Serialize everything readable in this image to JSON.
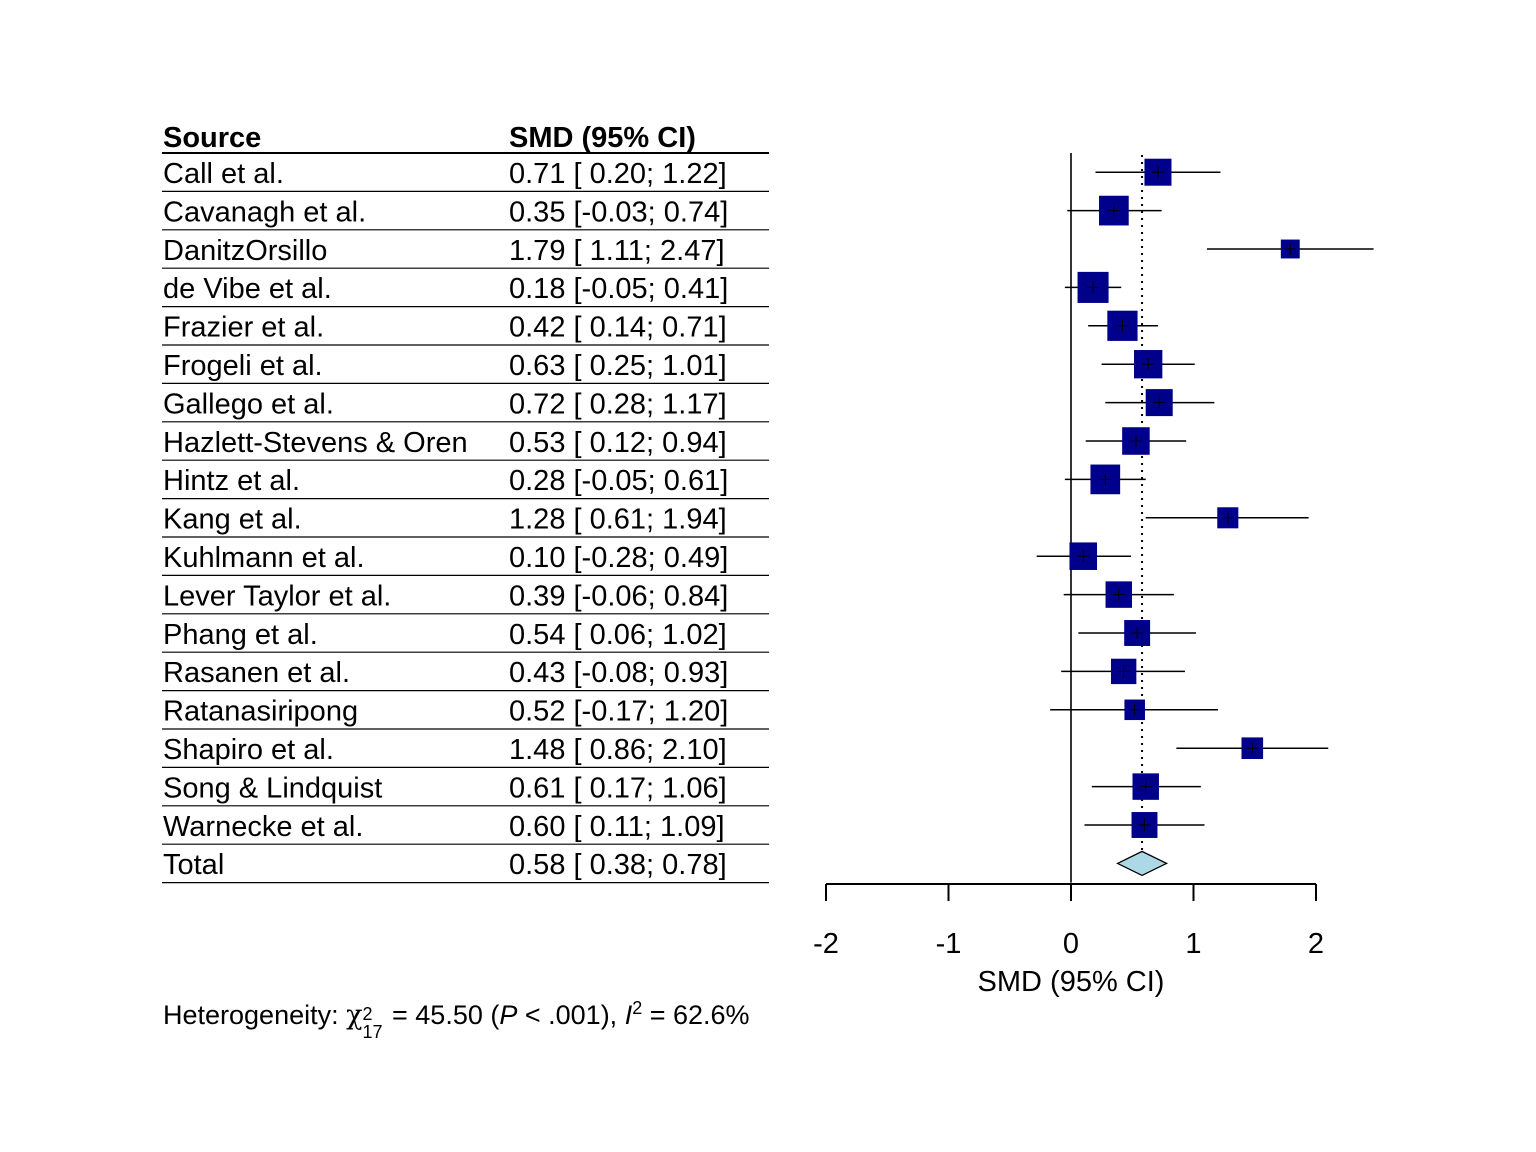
{
  "chart_data": {
    "type": "forest",
    "columns": {
      "source": "Source",
      "estimate": "SMD (95% CI)"
    },
    "xlabel": "SMD (95% CI)",
    "xlim": [
      -2,
      2
    ],
    "xticks": [
      "-2",
      "-1",
      "0",
      "1",
      "2"
    ],
    "xtick_values": [
      -2,
      -1,
      0,
      1,
      2
    ],
    "null_line": 0,
    "pooled_line": 0.58,
    "marker_color": "#00008B",
    "diamond_color": "#ADD8E6",
    "studies": [
      {
        "source": "Call et al.",
        "smd": 0.71,
        "lower": 0.2,
        "upper": 1.22,
        "ci_text": "0.71 [ 0.20; 1.22]",
        "weight": 1.0
      },
      {
        "source": "Cavanagh et al.",
        "smd": 0.35,
        "lower": -0.03,
        "upper": 0.74,
        "ci_text": "0.35 [-0.03; 0.74]",
        "weight": 1.1
      },
      {
        "source": "DanitzOrsillo",
        "smd": 1.79,
        "lower": 1.11,
        "upper": 2.47,
        "ci_text": "1.79 [ 1.11; 2.47]",
        "weight": 0.7
      },
      {
        "source": "de Vibe et al.",
        "smd": 0.18,
        "lower": -0.05,
        "upper": 0.41,
        "ci_text": "0.18 [-0.05; 0.41]",
        "weight": 1.15
      },
      {
        "source": "Frazier et al.",
        "smd": 0.42,
        "lower": 0.14,
        "upper": 0.71,
        "ci_text": "0.42 [ 0.14; 0.71]",
        "weight": 1.12
      },
      {
        "source": "Frogeli et al.",
        "smd": 0.63,
        "lower": 0.25,
        "upper": 1.01,
        "ci_text": "0.63 [ 0.25; 1.01]",
        "weight": 1.05
      },
      {
        "source": "Gallego et al.",
        "smd": 0.72,
        "lower": 0.28,
        "upper": 1.17,
        "ci_text": "0.72 [ 0.28; 1.17]",
        "weight": 1.0
      },
      {
        "source": "Hazlett-Stevens & Oren",
        "smd": 0.53,
        "lower": 0.12,
        "upper": 0.94,
        "ci_text": "0.53 [ 0.12; 0.94]",
        "weight": 1.02
      },
      {
        "source": "Hintz et al.",
        "smd": 0.28,
        "lower": -0.05,
        "upper": 0.61,
        "ci_text": "0.28 [-0.05; 0.61]",
        "weight": 1.1
      },
      {
        "source": "Kang et al.",
        "smd": 1.28,
        "lower": 0.61,
        "upper": 1.94,
        "ci_text": "1.28 [ 0.61; 1.94]",
        "weight": 0.78
      },
      {
        "source": "Kuhlmann et al.",
        "smd": 0.1,
        "lower": -0.28,
        "upper": 0.49,
        "ci_text": "0.10 [-0.28; 0.49]",
        "weight": 1.02
      },
      {
        "source": "Lever Taylor et al.",
        "smd": 0.39,
        "lower": -0.06,
        "upper": 0.84,
        "ci_text": "0.39 [-0.06; 0.84]",
        "weight": 0.98
      },
      {
        "source": "Phang et al.",
        "smd": 0.54,
        "lower": 0.06,
        "upper": 1.02,
        "ci_text": "0.54 [ 0.06; 1.02]",
        "weight": 0.96
      },
      {
        "source": "Rasanen et al.",
        "smd": 0.43,
        "lower": -0.08,
        "upper": 0.93,
        "ci_text": "0.43 [-0.08; 0.93]",
        "weight": 0.94
      },
      {
        "source": "Ratanasiripong",
        "smd": 0.52,
        "lower": -0.17,
        "upper": 1.2,
        "ci_text": "0.52 [-0.17; 1.20]",
        "weight": 0.76
      },
      {
        "source": "Shapiro et al.",
        "smd": 1.48,
        "lower": 0.86,
        "upper": 2.1,
        "ci_text": "1.48 [ 0.86; 2.10]",
        "weight": 0.8
      },
      {
        "source": "Song & Lindquist",
        "smd": 0.61,
        "lower": 0.17,
        "upper": 1.06,
        "ci_text": "0.61 [ 0.17; 1.06]",
        "weight": 0.98
      },
      {
        "source": "Warnecke et al.",
        "smd": 0.6,
        "lower": 0.11,
        "upper": 1.09,
        "ci_text": "0.60 [ 0.11; 1.09]",
        "weight": 0.96
      }
    ],
    "total": {
      "source": "Total",
      "smd": 0.58,
      "lower": 0.38,
      "upper": 0.78,
      "ci_text": "0.58 [ 0.38; 0.78]"
    }
  },
  "heterogeneity": {
    "prefix": "Heterogeneity: ",
    "chi_symbol": "χ",
    "df": "17",
    "chi_sup": "2",
    "chi_value": " = 45.50 (",
    "p_symbol": "P",
    "p_value": " < .001), ",
    "i_symbol": "I",
    "i_sup": "2",
    "i_value": " = 62.6%"
  }
}
